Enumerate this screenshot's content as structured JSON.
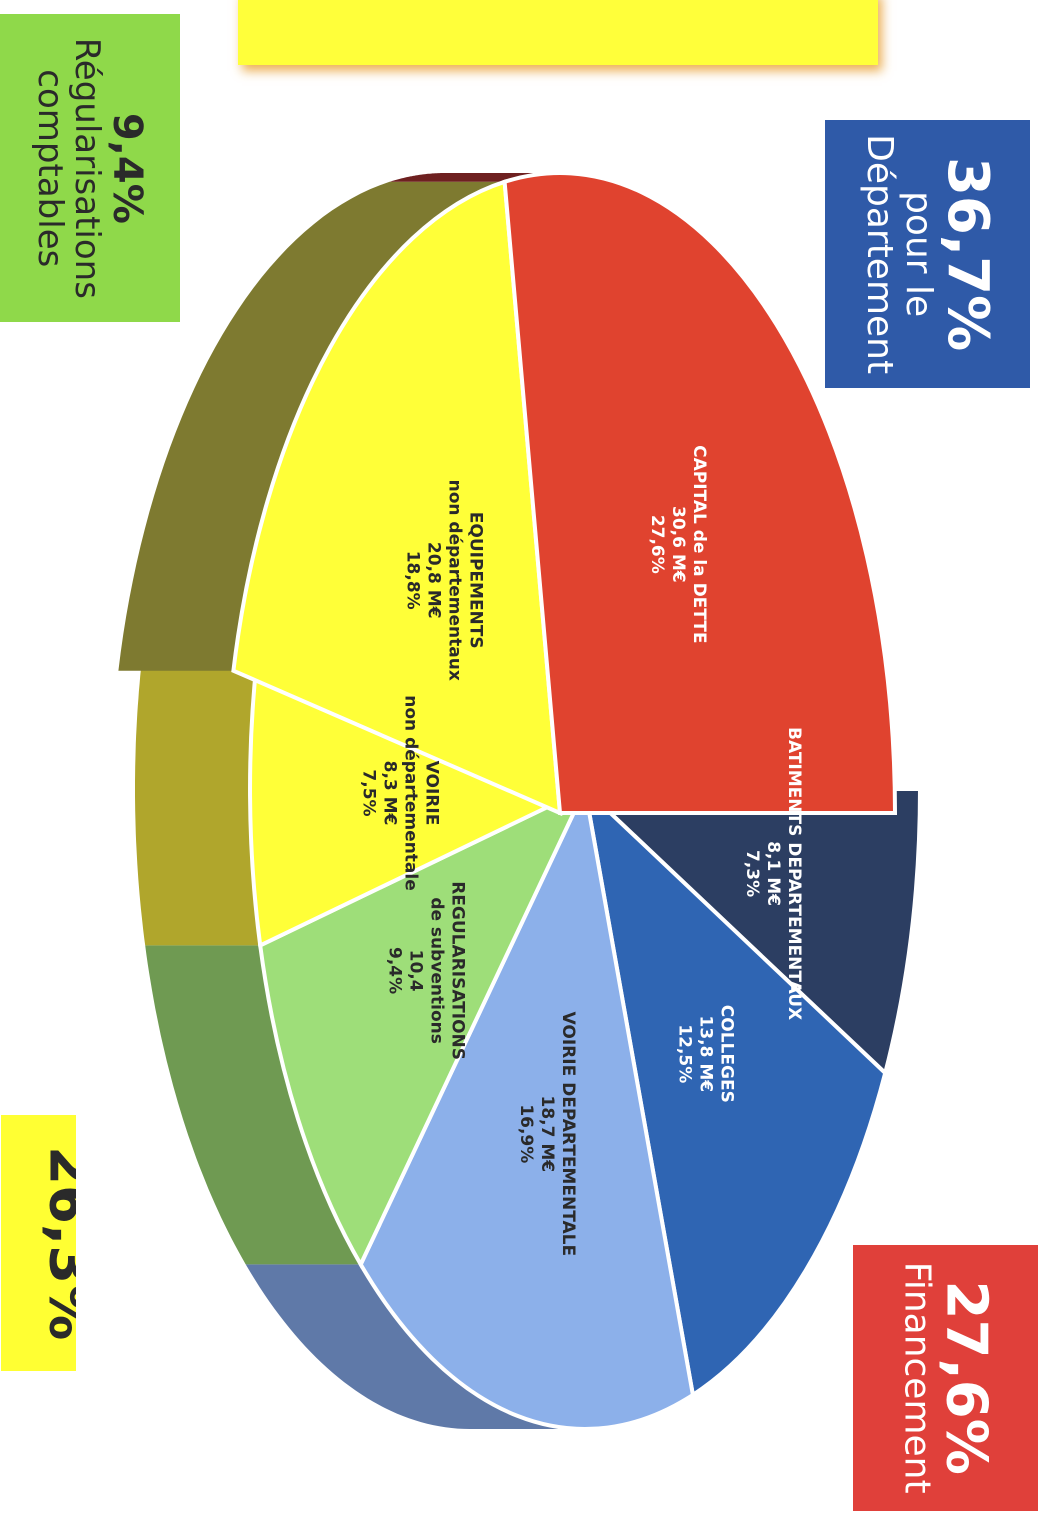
{
  "chart_data": {
    "type": "pie",
    "three_d": true,
    "unit": "M€",
    "slices": [
      {
        "label_lines": [
          "BATIMENTS DEPARTEMENTAUX",
          "8,1 M€",
          "7,3%"
        ],
        "value": 8.1,
        "percent": 7.3,
        "color": "#2c3e62",
        "side": "#1a2640"
      },
      {
        "label_lines": [
          "COLLEGES",
          "13,8 M€",
          "12,5%"
        ],
        "value": 13.8,
        "percent": 12.5,
        "color": "#2f65b3",
        "side": "#1c3f72"
      },
      {
        "label_lines": [
          "VOIRIE DEPARTEMENTALE",
          "18,7 M€",
          "16,9%"
        ],
        "value": 18.7,
        "percent": 16.9,
        "color": "#8cb0ea",
        "side": "#5f79a8"
      },
      {
        "label_lines": [
          "REGULARISATIONS",
          "de subventions",
          "10,4",
          "9,4%"
        ],
        "value": 10.4,
        "percent": 9.4,
        "color": "#9ede79",
        "side": "#6f9a52"
      },
      {
        "label_lines": [
          "VOIRIE",
          "non départementale",
          "8,3 M€",
          "7,5%"
        ],
        "value": 8.3,
        "percent": 7.5,
        "color": "#ffff38",
        "side": "#b0a62c"
      },
      {
        "label_lines": [
          "EQUIPEMENTS",
          "non départementaux",
          "20,8 M€",
          "18,8%"
        ],
        "value": 20.8,
        "percent": 18.8,
        "color": "#ffff38",
        "side": "#7e7a30"
      },
      {
        "label_lines": [
          "CAPITAL de la DETTE",
          "30,6 M€",
          "27,6%"
        ],
        "value": 30.6,
        "percent": 27.6,
        "color": "#e0432f",
        "side": "#6e2020"
      }
    ],
    "group_boxes": {
      "departement": {
        "percent": "36,7%",
        "label": [
          "pour le",
          "Département"
        ],
        "color": "#2f5aa8"
      },
      "financement": {
        "percent": "27,6%",
        "label": [
          "Financement"
        ],
        "color": "#e0403a"
      },
      "regularisations": {
        "percent": "9,4%",
        "label": [
          "Régularisations",
          "comptables"
        ],
        "color": "#8fd94a"
      },
      "non_departemental": {
        "percent": "26,3%",
        "label": [],
        "color": "#ffff33"
      }
    }
  }
}
